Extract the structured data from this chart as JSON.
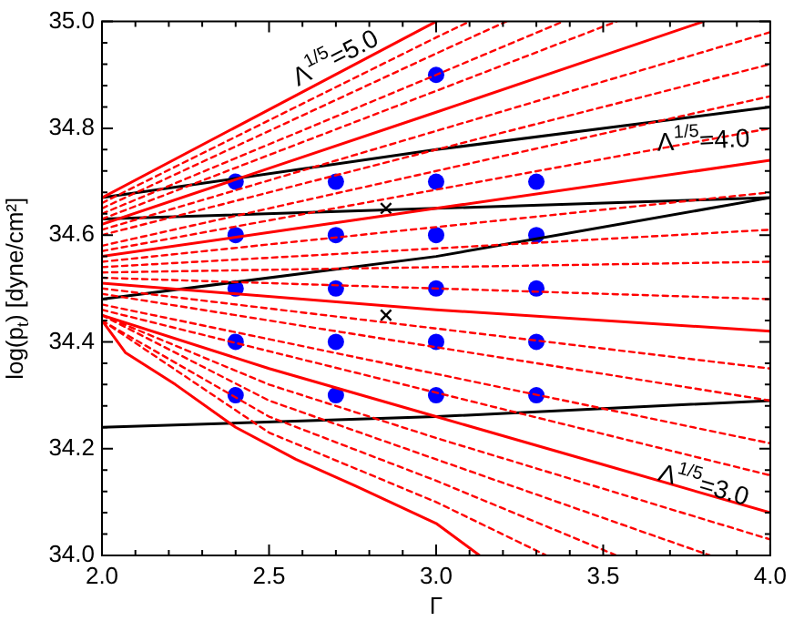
{
  "chart_data": {
    "type": "line",
    "xlabel": "Γ",
    "ylabel": "log(p$_{t}$) [dyne/cm²]",
    "xlim": [
      2.0,
      4.0
    ],
    "ylim": [
      34.0,
      35.0
    ],
    "xticks": [
      {
        "value": 2.0,
        "label": "2.0"
      },
      {
        "value": 2.1,
        "label": null
      },
      {
        "value": 2.2,
        "label": null
      },
      {
        "value": 2.3,
        "label": null
      },
      {
        "value": 2.4,
        "label": null
      },
      {
        "value": 2.5,
        "label": "2.5"
      },
      {
        "value": 2.6,
        "label": null
      },
      {
        "value": 2.7,
        "label": null
      },
      {
        "value": 2.8,
        "label": null
      },
      {
        "value": 2.9,
        "label": null
      },
      {
        "value": 3.0,
        "label": "3.0"
      },
      {
        "value": 3.1,
        "label": null
      },
      {
        "value": 3.2,
        "label": null
      },
      {
        "value": 3.3,
        "label": null
      },
      {
        "value": 3.4,
        "label": null
      },
      {
        "value": 3.5,
        "label": "3.5"
      },
      {
        "value": 3.6,
        "label": null
      },
      {
        "value": 3.7,
        "label": null
      },
      {
        "value": 3.8,
        "label": null
      },
      {
        "value": 3.9,
        "label": null
      },
      {
        "value": 4.0,
        "label": "4.0"
      }
    ],
    "yticks": [
      {
        "value": 34.0,
        "label": "34.0"
      },
      {
        "value": 34.04,
        "label": null
      },
      {
        "value": 34.08,
        "label": null
      },
      {
        "value": 34.12,
        "label": null
      },
      {
        "value": 34.16,
        "label": null
      },
      {
        "value": 34.2,
        "label": "34.2"
      },
      {
        "value": 34.24,
        "label": null
      },
      {
        "value": 34.28,
        "label": null
      },
      {
        "value": 34.32,
        "label": null
      },
      {
        "value": 34.36,
        "label": null
      },
      {
        "value": 34.4,
        "label": "34.4"
      },
      {
        "value": 34.44,
        "label": null
      },
      {
        "value": 34.48,
        "label": null
      },
      {
        "value": 34.52,
        "label": null
      },
      {
        "value": 34.56,
        "label": null
      },
      {
        "value": 34.6,
        "label": "34.6"
      },
      {
        "value": 34.64,
        "label": null
      },
      {
        "value": 34.68,
        "label": null
      },
      {
        "value": 34.72,
        "label": null
      },
      {
        "value": 34.76,
        "label": null
      },
      {
        "value": 34.8,
        "label": "34.8"
      },
      {
        "value": 34.84,
        "label": null
      },
      {
        "value": 34.88,
        "label": null
      },
      {
        "value": 34.92,
        "label": null
      },
      {
        "value": 34.96,
        "label": null
      },
      {
        "value": 35.0,
        "label": "35.0"
      }
    ],
    "grid": false,
    "legend": false,
    "marker": "none",
    "line_style": "solid",
    "annotations": [
      "Λ$^{1/5}$=5.0",
      "Λ$^{1/5}$=4.0",
      "Λ$^{1/5}$=3.0"
    ],
    "series": [
      {
        "color": "#ff0000",
        "x": [
          2.0,
          3.0
        ],
        "values": [
          34.67,
          35.0
        ]
      },
      {
        "color": "#ff0000",
        "x": [
          2.0,
          3.0,
          3.8
        ],
        "values": [
          34.62,
          34.83,
          35.0
        ]
      },
      {
        "color": "#ff0000",
        "x": [
          2.0,
          3.0,
          4.0
        ],
        "values": [
          34.56,
          34.65,
          34.74
        ]
      },
      {
        "color": "#ff0000",
        "x": [
          2.0,
          3.0,
          4.0
        ],
        "values": [
          34.51,
          34.46,
          34.42
        ]
      },
      {
        "color": "#ff0000",
        "x": [
          2.0,
          2.5,
          3.0,
          3.5,
          4.0
        ],
        "values": [
          34.45,
          34.35,
          34.26,
          34.17,
          34.08
        ]
      },
      {
        "color": "#ff0000",
        "x": [
          2.0,
          2.07,
          2.22,
          2.4,
          2.58,
          2.76,
          3.0,
          3.13
        ],
        "values": [
          34.44,
          34.38,
          34.32,
          34.24,
          34.18,
          34.13,
          34.06,
          34.0
        ]
      },
      {
        "color": "#ff0000",
        "line_style": "dashed",
        "x": [
          2.0,
          3.0,
          3.1
        ],
        "values": [
          34.66,
          34.97,
          35.0
        ]
      },
      {
        "color": "#ff0000",
        "line_style": "dashed",
        "x": [
          2.0,
          3.0,
          3.21
        ],
        "values": [
          34.65,
          34.94,
          35.0
        ]
      },
      {
        "color": "#ff0000",
        "line_style": "dashed",
        "x": [
          2.0,
          3.0,
          3.38
        ],
        "values": [
          34.64,
          34.9,
          35.0
        ]
      },
      {
        "color": "#ff0000",
        "line_style": "dashed",
        "x": [
          2.0,
          3.0,
          3.54
        ],
        "values": [
          34.63,
          34.87,
          35.0
        ]
      },
      {
        "color": "#ff0000",
        "line_style": "dashed",
        "x": [
          2.0,
          4.0
        ],
        "values": [
          34.61,
          34.98
        ]
      },
      {
        "color": "#ff0000",
        "line_style": "dashed",
        "x": [
          2.0,
          4.0
        ],
        "values": [
          34.6,
          34.92
        ]
      },
      {
        "color": "#ff0000",
        "line_style": "dashed",
        "x": [
          2.0,
          4.0
        ],
        "values": [
          34.58,
          34.86
        ]
      },
      {
        "color": "#ff0000",
        "line_style": "dashed",
        "x": [
          2.0,
          4.0
        ],
        "values": [
          34.57,
          34.8
        ]
      },
      {
        "color": "#ff0000",
        "line_style": "dashed",
        "x": [
          2.0,
          4.0
        ],
        "values": [
          34.55,
          34.68
        ]
      },
      {
        "color": "#ff0000",
        "line_style": "dashed",
        "x": [
          2.0,
          4.0
        ],
        "values": [
          34.54,
          34.61
        ]
      },
      {
        "color": "#ff0000",
        "line_style": "dashed",
        "x": [
          2.0,
          4.0
        ],
        "values": [
          34.53,
          34.55
        ]
      },
      {
        "color": "#ff0000",
        "line_style": "dashed",
        "x": [
          2.0,
          4.0
        ],
        "values": [
          34.52,
          34.48
        ]
      },
      {
        "color": "#ff0000",
        "line_style": "dashed",
        "x": [
          2.0,
          4.0
        ],
        "values": [
          34.5,
          34.35
        ]
      },
      {
        "color": "#ff0000",
        "line_style": "dashed",
        "x": [
          2.0,
          4.0
        ],
        "values": [
          34.49,
          34.29
        ]
      },
      {
        "color": "#ff0000",
        "line_style": "dashed",
        "x": [
          2.0,
          4.0
        ],
        "values": [
          34.47,
          34.21
        ]
      },
      {
        "color": "#ff0000",
        "line_style": "dashed",
        "x": [
          2.0,
          4.0
        ],
        "values": [
          34.46,
          34.15
        ]
      },
      {
        "color": "#ff0000",
        "line_style": "dashed",
        "x": [
          2.0,
          2.5,
          3.0,
          4.0
        ],
        "values": [
          34.45,
          34.32,
          34.22,
          34.03
        ]
      },
      {
        "color": "#ff0000",
        "line_style": "dashed",
        "x": [
          2.0,
          2.5,
          3.0,
          3.82
        ],
        "values": [
          34.45,
          34.29,
          34.18,
          34.0
        ]
      },
      {
        "color": "#ff0000",
        "line_style": "dashed",
        "x": [
          2.0,
          2.5,
          3.0,
          3.54
        ],
        "values": [
          34.44,
          34.26,
          34.14,
          34.0
        ]
      },
      {
        "color": "#ff0000",
        "line_style": "dashed",
        "x": [
          2.0,
          2.5,
          3.0,
          3.33
        ],
        "values": [
          34.44,
          34.23,
          34.1,
          34.0
        ]
      },
      {
        "color": "#000000",
        "x": [
          2.0,
          3.0,
          4.0
        ],
        "values": [
          34.67,
          34.76,
          34.84
        ]
      },
      {
        "color": "#000000",
        "x": [
          2.0,
          3.0,
          4.0
        ],
        "values": [
          34.63,
          34.65,
          34.67
        ]
      },
      {
        "color": "#000000",
        "x": [
          2.0,
          3.0,
          4.0
        ],
        "values": [
          34.48,
          34.56,
          34.67
        ]
      },
      {
        "color": "#000000",
        "x": [
          2.0,
          3.0,
          4.0
        ],
        "values": [
          34.24,
          34.26,
          34.29
        ]
      },
      {
        "type": "scatter",
        "marker": "circle",
        "color": "#0000ff",
        "x": [
          2.4,
          2.4,
          2.4,
          2.4,
          2.4,
          2.7,
          2.7,
          2.7,
          2.7,
          2.7,
          3.0,
          3.0,
          3.0,
          3.0,
          3.0,
          3.0,
          3.3,
          3.3,
          3.3,
          3.3,
          3.3
        ],
        "values": [
          34.3,
          34.4,
          34.5,
          34.6,
          34.7,
          34.3,
          34.4,
          34.5,
          34.6,
          34.7,
          34.3,
          34.4,
          34.5,
          34.6,
          34.7,
          34.9,
          34.3,
          34.4,
          34.5,
          34.6,
          34.7
        ]
      },
      {
        "type": "scatter",
        "marker": "cross",
        "color": "#000000",
        "x": [
          2.85,
          2.85
        ],
        "values": [
          34.65,
          34.45
        ]
      }
    ]
  }
}
